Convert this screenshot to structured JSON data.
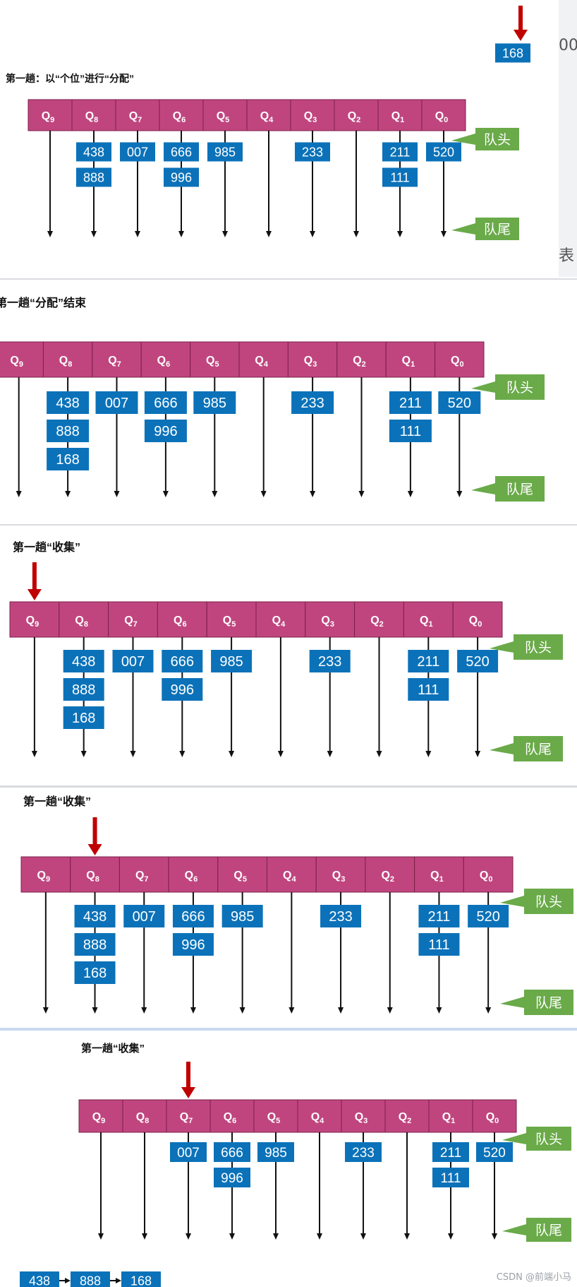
{
  "colors": {
    "queue_cell": "#c0457f",
    "queue_border": "#7a2048",
    "number_box": "#0b72b9",
    "tag_green": "#6aaa49",
    "arrow_red": "#c00000",
    "line": "#111111"
  },
  "queue_labels": [
    {
      "q": "Q",
      "sub": "9"
    },
    {
      "q": "Q",
      "sub": "8"
    },
    {
      "q": "Q",
      "sub": "7"
    },
    {
      "q": "Q",
      "sub": "6"
    },
    {
      "q": "Q",
      "sub": "5"
    },
    {
      "q": "Q",
      "sub": "4"
    },
    {
      "q": "Q",
      "sub": "3"
    },
    {
      "q": "Q",
      "sub": "2"
    },
    {
      "q": "Q",
      "sub": "1"
    },
    {
      "q": "Q",
      "sub": "0"
    }
  ],
  "tags": {
    "head": "队头",
    "tail": "队尾"
  },
  "side_fragments": {
    "top": "00",
    "mid": "表"
  },
  "panels": [
    {
      "title": "第一趟：以“个位”进行“分配”",
      "floating_number": "168",
      "queues": [
        [],
        [
          "438",
          "888"
        ],
        [
          "007"
        ],
        [
          "666",
          "996"
        ],
        [
          "985"
        ],
        [],
        [
          "233"
        ],
        [],
        [
          "211",
          "111"
        ],
        [
          "520"
        ]
      ],
      "pointer_index": null,
      "collected": []
    },
    {
      "title": "第一趟“分配”结束",
      "floating_number": null,
      "queues": [
        [],
        [
          "438",
          "888",
          "168"
        ],
        [
          "007"
        ],
        [
          "666",
          "996"
        ],
        [
          "985"
        ],
        [],
        [
          "233"
        ],
        [],
        [
          "211",
          "111"
        ],
        [
          "520"
        ]
      ],
      "pointer_index": null,
      "collected": []
    },
    {
      "title": "第一趟“收集”",
      "floating_number": null,
      "queues": [
        [],
        [
          "438",
          "888",
          "168"
        ],
        [
          "007"
        ],
        [
          "666",
          "996"
        ],
        [
          "985"
        ],
        [],
        [
          "233"
        ],
        [],
        [
          "211",
          "111"
        ],
        [
          "520"
        ]
      ],
      "pointer_index": 0,
      "collected": []
    },
    {
      "title": "第一趟“收集”",
      "floating_number": null,
      "queues": [
        [],
        [
          "438",
          "888",
          "168"
        ],
        [
          "007"
        ],
        [
          "666",
          "996"
        ],
        [
          "985"
        ],
        [],
        [
          "233"
        ],
        [],
        [
          "211",
          "111"
        ],
        [
          "520"
        ]
      ],
      "pointer_index": 1,
      "collected": []
    },
    {
      "title": "第一趟“收集”",
      "floating_number": null,
      "queues": [
        [],
        [],
        [
          "007"
        ],
        [
          "666",
          "996"
        ],
        [
          "985"
        ],
        [],
        [
          "233"
        ],
        [],
        [
          "211",
          "111"
        ],
        [
          "520"
        ]
      ],
      "pointer_index": 2,
      "collected": [
        "438",
        "888",
        "168"
      ]
    }
  ],
  "watermark": "CSDN @前端小马"
}
